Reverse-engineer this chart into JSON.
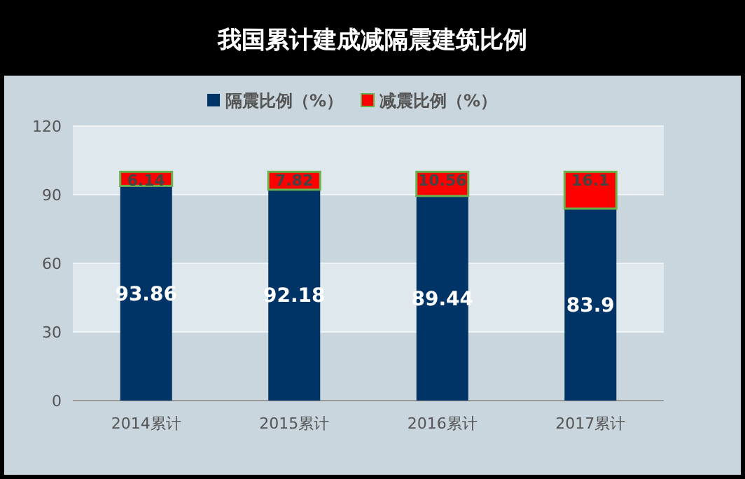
{
  "chart_data": {
    "type": "bar",
    "title": "我国累计建成减隔震建筑比例",
    "categories": [
      "2014累计",
      "2015累计",
      "2016累计",
      "2017累计"
    ],
    "stacked": true,
    "data_labels": true,
    "legend": "top",
    "grid": "y",
    "ylim": [
      0,
      120
    ],
    "yticks": [
      0,
      30,
      60,
      90,
      120
    ],
    "series": [
      {
        "name": "隔震比例（%）",
        "color": "#003366",
        "values": [
          93.86,
          92.18,
          89.44,
          83.9
        ]
      },
      {
        "name": "减震比例（%）",
        "color": "#ff0000",
        "values": [
          6.14,
          7.82,
          10.56,
          16.1
        ]
      }
    ]
  }
}
